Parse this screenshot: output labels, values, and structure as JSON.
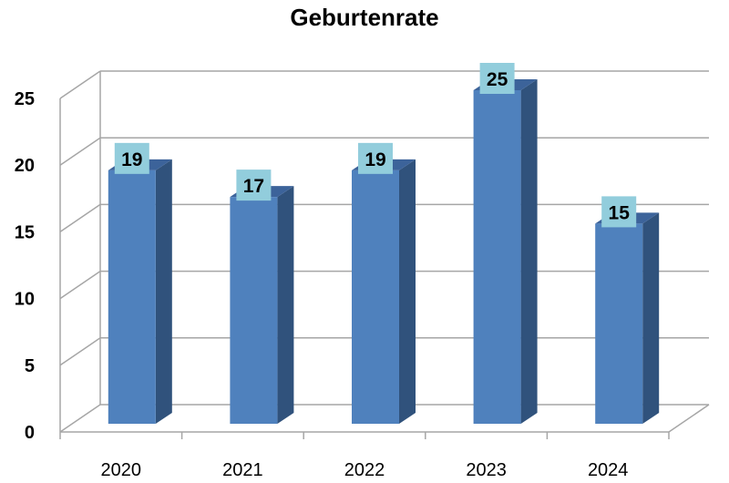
{
  "chart_data": {
    "type": "bar",
    "title": "Geburtenrate",
    "categories": [
      "2020",
      "2021",
      "2022",
      "2023",
      "2024"
    ],
    "values": [
      19,
      17,
      19,
      25,
      15
    ],
    "ylim": [
      0,
      25
    ],
    "yticks": [
      0,
      5,
      10,
      15,
      20,
      25
    ],
    "grid": true,
    "data_labels": true,
    "style": "3d-column",
    "colors": {
      "bar_front": "#4f81bd",
      "bar_side": "#30527c",
      "bar_top": "#3c639a",
      "label_bg": "#92cddc",
      "grid": "#a6a6a6"
    }
  }
}
